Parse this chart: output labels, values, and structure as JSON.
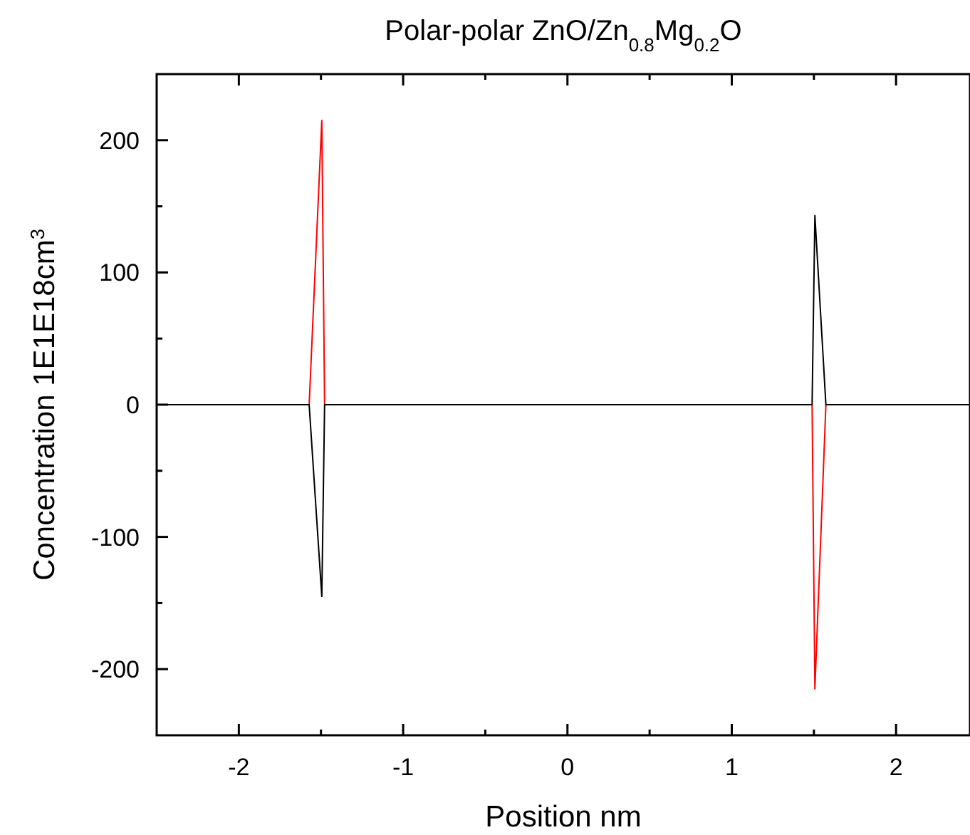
{
  "chart_data": {
    "type": "line",
    "title": "Polar-polar ZnO/Zn$_{0.8}$Mg$_{0.2}$O",
    "xlabel": "Position nm",
    "ylabel": "Concentration 1E1E18cm$^{3}$",
    "series": [
      {
        "color": "#ff0000",
        "x": [
          -2.5,
          -1.572,
          -1.495,
          -1.478,
          1.489,
          1.506,
          1.573,
          2.45
        ],
        "values": [
          0,
          0,
          215,
          0,
          0,
          -215,
          0,
          0
        ]
      },
      {
        "color": "#000000",
        "x": [
          -2.5,
          -1.572,
          -1.495,
          -1.478,
          1.489,
          1.506,
          1.573,
          2.45
        ],
        "values": [
          0,
          0,
          -145,
          0,
          0,
          143,
          0,
          0
        ]
      }
    ],
    "xlim": [
      -2.5,
      2.45
    ],
    "ylim": [
      -250,
      250
    ],
    "xticks": [
      -2,
      {
        "value": -1.5,
        "label": null
      },
      -1,
      {
        "value": -0.5,
        "label": null
      },
      0,
      {
        "value": 0.5,
        "label": null
      },
      1,
      {
        "value": 1.5,
        "label": null
      },
      2
    ],
    "yticks": [
      -200,
      {
        "value": -150,
        "label": null
      },
      -100,
      {
        "value": -50,
        "label": null
      },
      0,
      {
        "value": 50,
        "label": null
      },
      100,
      {
        "value": 150,
        "label": null
      },
      200
    ],
    "grid": false,
    "marker": "none",
    "line_style": "solid"
  }
}
